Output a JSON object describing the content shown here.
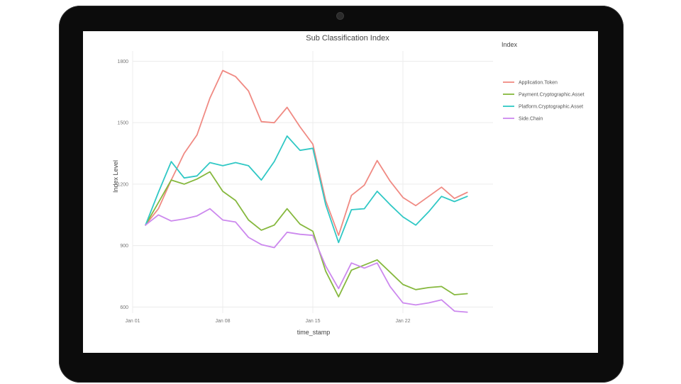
{
  "chart_data": {
    "type": "line",
    "title": "Sub Classification Index",
    "xlabel": "time_stamp",
    "ylabel": "Index Level",
    "x_tick_labels": [
      "Jan 01",
      "Jan 08",
      "Jan 15",
      "Jan 22"
    ],
    "x_tick_days": [
      1,
      8,
      15,
      22
    ],
    "y_ticks": [
      600,
      900,
      1200,
      1500,
      1800
    ],
    "ylim": [
      570,
      1850
    ],
    "grid": true,
    "legend_title": "Index",
    "legend_position": "right",
    "x": [
      2,
      3,
      4,
      5,
      6,
      7,
      8,
      9,
      10,
      11,
      12,
      13,
      14,
      15,
      16,
      17,
      18,
      19,
      20,
      21,
      22,
      23,
      24,
      25,
      26,
      27
    ],
    "series": [
      {
        "name": "Application.Token",
        "color": "#f08a83",
        "values": [
          1000,
          1080,
          1220,
          1350,
          1440,
          1620,
          1755,
          1725,
          1655,
          1505,
          1500,
          1575,
          1480,
          1395,
          1120,
          950,
          1145,
          1195,
          1315,
          1215,
          1135,
          1095,
          1140,
          1185,
          1130,
          1160
        ]
      },
      {
        "name": "Payment.Cryptographic.Asset",
        "color": "#86b83e",
        "values": [
          1000,
          1110,
          1220,
          1200,
          1225,
          1260,
          1165,
          1120,
          1025,
          975,
          1000,
          1080,
          1005,
          970,
          775,
          650,
          780,
          805,
          830,
          770,
          710,
          685,
          695,
          700,
          660,
          665
        ]
      },
      {
        "name": "Platform.Cryptographic.Asset",
        "color": "#30c8c5",
        "values": [
          1000,
          1160,
          1310,
          1230,
          1240,
          1305,
          1290,
          1305,
          1290,
          1220,
          1310,
          1435,
          1365,
          1375,
          1100,
          915,
          1075,
          1080,
          1165,
          1100,
          1040,
          1000,
          1065,
          1140,
          1115,
          1140
        ]
      },
      {
        "name": "Side.Chain",
        "color": "#cc88ee",
        "values": [
          1000,
          1050,
          1020,
          1030,
          1045,
          1080,
          1025,
          1015,
          940,
          905,
          890,
          965,
          955,
          950,
          800,
          690,
          815,
          790,
          815,
          700,
          620,
          610,
          620,
          635,
          580,
          575
        ]
      }
    ]
  }
}
